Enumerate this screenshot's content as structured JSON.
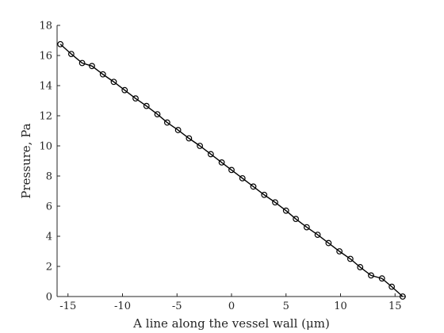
{
  "chart_data": {
    "type": "line",
    "title": "",
    "xlabel": "A line along the vessel wall (μm)",
    "ylabel": "Pressure, Pa",
    "xlim": [
      -16,
      16
    ],
    "ylim": [
      0,
      18
    ],
    "xticks": [
      -15,
      -10,
      -5,
      0,
      5,
      10,
      15
    ],
    "yticks": [
      0,
      2,
      4,
      6,
      8,
      10,
      12,
      14,
      16,
      18
    ],
    "grid": false,
    "legend": "none",
    "line_color": "#000000",
    "marker": "circle",
    "series": [
      {
        "x": [
          -15.7,
          -14.7,
          -13.7,
          -12.8,
          -11.8,
          -10.8,
          -9.8,
          -8.8,
          -7.8,
          -6.8,
          -5.9,
          -4.9,
          -3.9,
          -2.9,
          -1.9,
          -0.9,
          0.0,
          1.0,
          2.0,
          3.0,
          4.0,
          5.0,
          5.9,
          6.9,
          7.9,
          8.9,
          9.9,
          10.9,
          11.8,
          12.8,
          13.8,
          14.7,
          15.7
        ],
        "y": [
          16.75,
          16.1,
          15.5,
          15.3,
          14.75,
          14.25,
          13.7,
          13.15,
          12.65,
          12.1,
          11.55,
          11.05,
          10.5,
          10.0,
          9.45,
          8.9,
          8.4,
          7.85,
          7.3,
          6.75,
          6.25,
          5.7,
          5.15,
          4.6,
          4.1,
          3.55,
          3.0,
          2.5,
          1.95,
          1.4,
          1.2,
          0.65,
          0.0
        ]
      }
    ]
  }
}
